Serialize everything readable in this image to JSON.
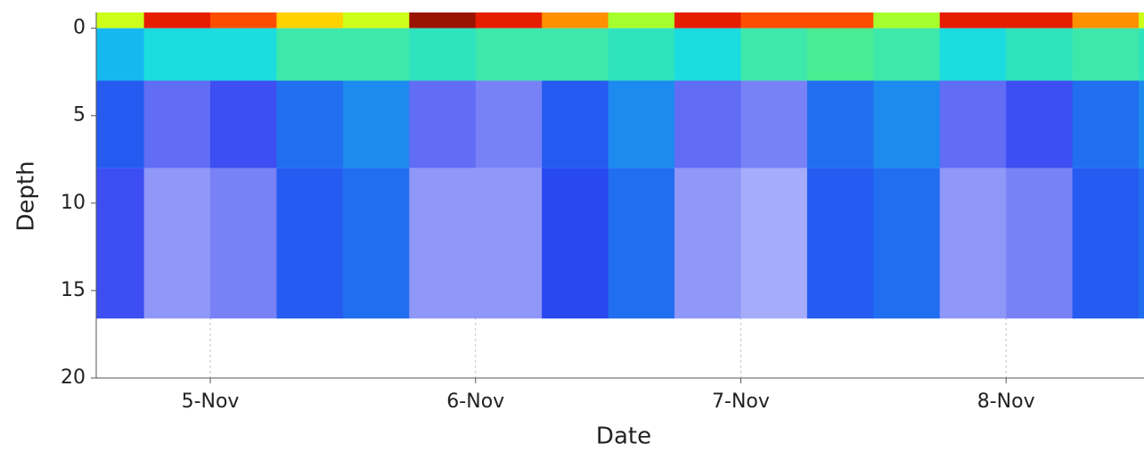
{
  "chart_data": {
    "type": "heatmap",
    "x_label": "Date",
    "y_label": "Depth",
    "xlim": [
      4.57,
      8.52
    ],
    "ylim": [
      20,
      -0.9
    ],
    "y_inverted": true,
    "xticks": [
      {
        "value": 5,
        "label": "5-Nov"
      },
      {
        "value": 6,
        "label": "6-Nov"
      },
      {
        "value": 7,
        "label": "7-Nov"
      },
      {
        "value": 8,
        "label": "8-Nov"
      }
    ],
    "yticks": [
      0,
      5,
      10,
      15,
      20
    ],
    "grid": true,
    "x_edges": [
      4.57,
      4.75,
      5.0,
      5.25,
      5.5,
      5.75,
      6.0,
      6.25,
      6.5,
      6.75,
      7.0,
      7.25,
      7.5,
      7.75,
      8.0,
      8.25,
      8.5,
      8.52
    ],
    "y_edges": [
      -0.9,
      0,
      3,
      8,
      16.6
    ],
    "zlim": [
      0,
      1
    ],
    "colormap": [
      "#ecebff",
      "#2a3cf0",
      "#10d8f0",
      "#80ff40",
      "#ffff00",
      "#ff2000",
      "#000000"
    ],
    "z": [
      [
        0.6,
        0.85,
        0.8,
        0.7,
        0.6,
        0.9,
        0.85,
        0.75,
        0.55,
        0.85,
        0.8,
        0.8,
        0.55,
        0.85,
        0.85,
        0.75,
        0.6
      ],
      [
        0.3,
        0.35,
        0.35,
        0.4,
        0.4,
        0.38,
        0.4,
        0.4,
        0.38,
        0.35,
        0.4,
        0.42,
        0.4,
        0.35,
        0.38,
        0.4,
        0.38
      ],
      [
        0.2,
        0.12,
        0.15,
        0.22,
        0.25,
        0.12,
        0.1,
        0.2,
        0.25,
        0.12,
        0.1,
        0.22,
        0.25,
        0.12,
        0.15,
        0.22,
        0.25
      ],
      [
        0.15,
        0.08,
        0.1,
        0.2,
        0.22,
        0.08,
        0.08,
        0.18,
        0.22,
        0.08,
        0.06,
        0.2,
        0.22,
        0.08,
        0.1,
        0.2,
        0.22
      ]
    ]
  }
}
